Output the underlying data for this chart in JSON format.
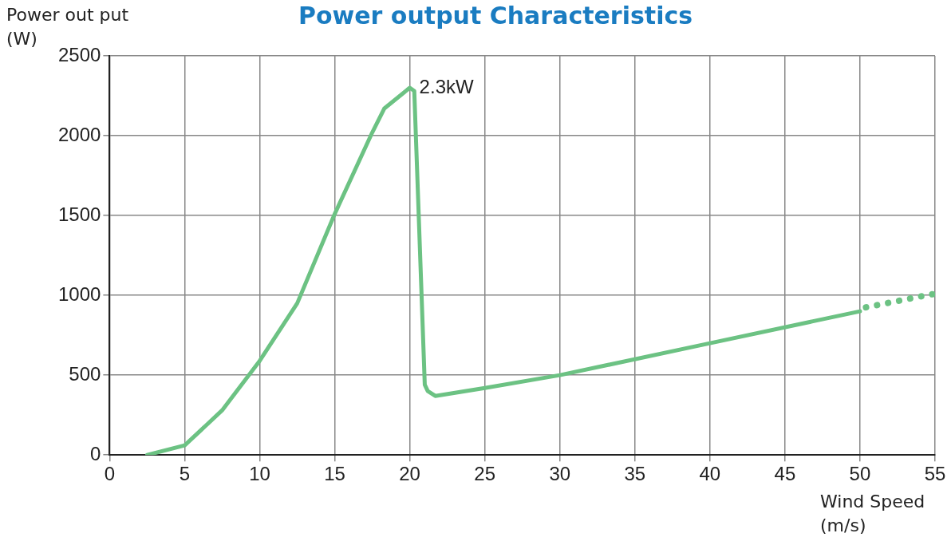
{
  "chart_data": {
    "type": "line",
    "title": "Power output Characteristics",
    "xlabel": "Wind Speed\n(m/s)",
    "ylabel": "Power out put\n(W)",
    "series": [
      {
        "color": "#6cc283",
        "line_style": "solid",
        "x": [
          2.5,
          5,
          7.5,
          10,
          12.5,
          15,
          17.5,
          18.3,
          20,
          20.3,
          21,
          21.2,
          21.7,
          25,
          30,
          40,
          50
        ],
        "values": [
          0,
          60,
          280,
          590,
          950,
          1510,
          2020,
          2170,
          2300,
          2280,
          440,
          400,
          370,
          420,
          500,
          700,
          900
        ]
      },
      {
        "color": "#6cc283",
        "line_style": "dotted",
        "x": [
          50.4,
          51.2,
          52,
          52.8,
          53.6,
          54.4,
          55
        ],
        "values": [
          925,
          940,
          955,
          970,
          985,
          1000,
          1010
        ]
      }
    ],
    "xlim": [
      0,
      55
    ],
    "xticks": [
      0,
      5,
      10,
      15,
      20,
      25,
      30,
      35,
      40,
      45,
      50,
      55
    ],
    "ylim": [
      0,
      2500
    ],
    "yticks": [
      0,
      500,
      1000,
      1500,
      2000,
      2500
    ],
    "grid": true,
    "legend": false,
    "marker": "none",
    "annotations": [
      {
        "text": "2.3kW",
        "x": 20,
        "y": 2300
      }
    ]
  }
}
